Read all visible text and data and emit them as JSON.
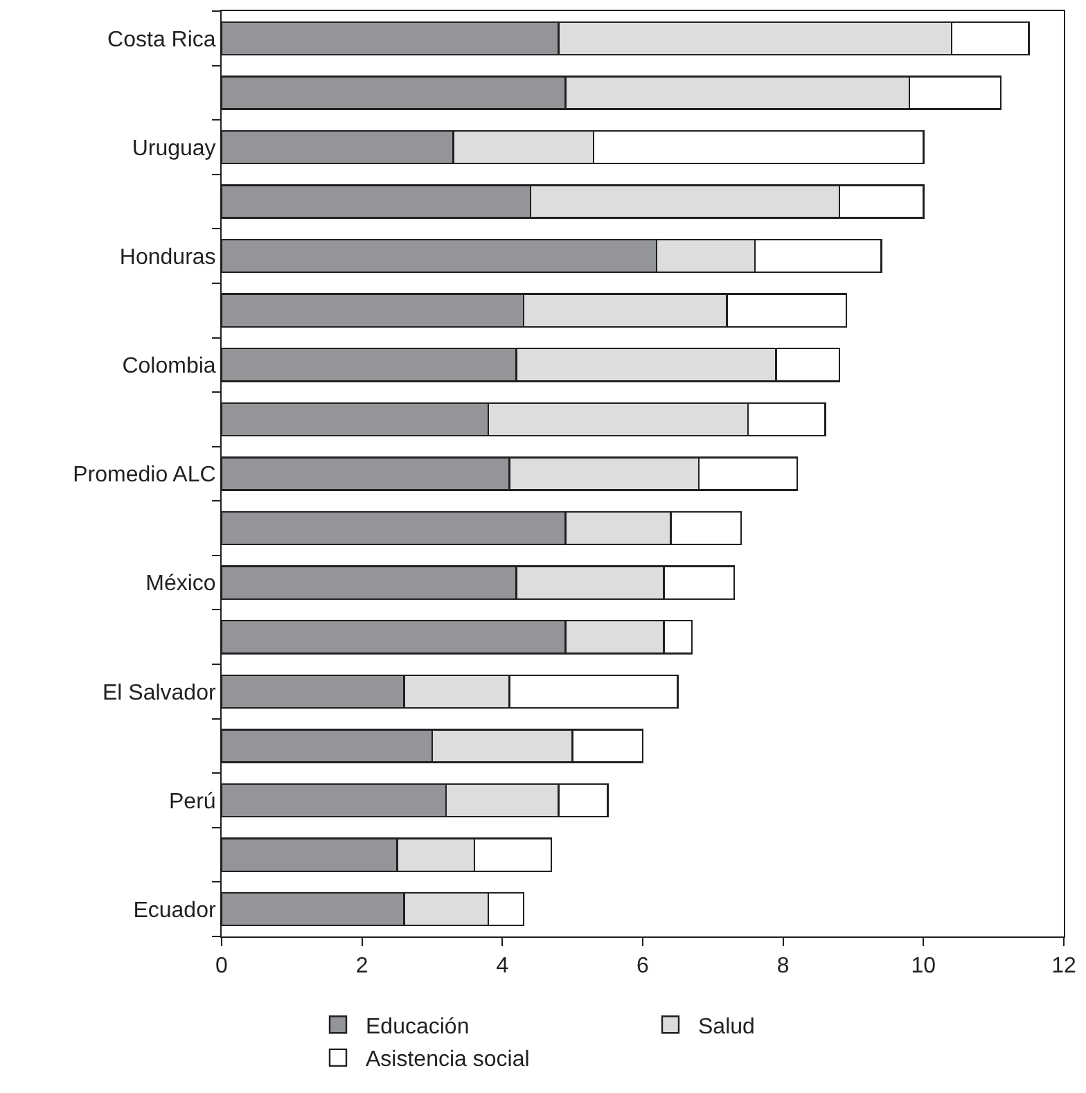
{
  "chart_data": {
    "type": "bar",
    "orientation": "horizontal",
    "stacked": true,
    "categories": [
      "Costa Rica",
      null,
      "Uruguay",
      null,
      "Honduras",
      null,
      "Colombia",
      null,
      "Promedio ALC",
      null,
      "México",
      null,
      "El Salvador",
      null,
      "Perú",
      null,
      "Ecuador"
    ],
    "series": [
      {
        "name": "Educación",
        "color": "#939598",
        "values": [
          4.8,
          4.9,
          3.3,
          4.4,
          6.2,
          4.3,
          4.2,
          3.8,
          4.1,
          4.9,
          4.2,
          4.9,
          2.6,
          3.0,
          3.2,
          2.5,
          2.6
        ]
      },
      {
        "name": "Salud",
        "color": "#dcddde",
        "values": [
          5.6,
          4.9,
          2.0,
          4.4,
          1.4,
          2.9,
          3.7,
          3.7,
          2.7,
          1.5,
          2.1,
          1.4,
          1.5,
          2.0,
          1.6,
          1.1,
          1.2
        ]
      },
      {
        "name": "Asistencia social",
        "color": "#ffffff",
        "values": [
          1.1,
          1.3,
          4.7,
          1.2,
          1.8,
          1.7,
          0.9,
          1.1,
          1.4,
          1.0,
          1.0,
          0.4,
          2.4,
          1.0,
          0.7,
          1.1,
          0.5
        ]
      }
    ],
    "xlim": [
      0,
      12
    ],
    "xticks": [
      0,
      2,
      4,
      6,
      8,
      10,
      12
    ],
    "legend": "bottom"
  }
}
